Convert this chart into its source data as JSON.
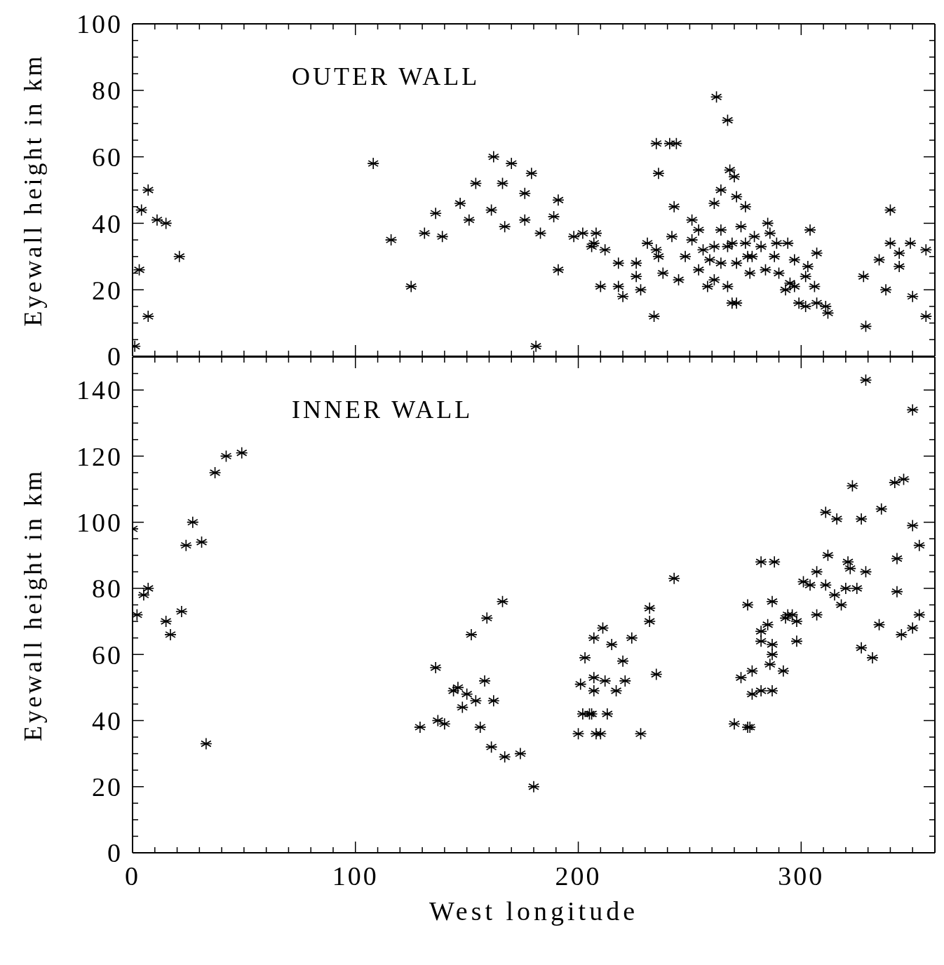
{
  "chart_data": [
    {
      "type": "scatter",
      "ylabel": "Eyewall height in km",
      "annotations": [
        "OUTER WALL"
      ],
      "tick_labels": "y",
      "marker": "cross",
      "color": "#000000",
      "xlim": [
        0,
        360
      ],
      "xticks": [
        0,
        {
          "value": 10,
          "label": null
        },
        {
          "value": 20,
          "label": null
        },
        {
          "value": 30,
          "label": null
        },
        {
          "value": 40,
          "label": null
        },
        {
          "value": 50,
          "label": null
        },
        {
          "value": 60,
          "label": null
        },
        {
          "value": 70,
          "label": null
        },
        {
          "value": 80,
          "label": null
        },
        {
          "value": 90,
          "label": null
        },
        100,
        {
          "value": 110,
          "label": null
        },
        {
          "value": 120,
          "label": null
        },
        {
          "value": 130,
          "label": null
        },
        {
          "value": 140,
          "label": null
        },
        {
          "value": 150,
          "label": null
        },
        {
          "value": 160,
          "label": null
        },
        {
          "value": 170,
          "label": null
        },
        {
          "value": 180,
          "label": null
        },
        {
          "value": 190,
          "label": null
        },
        200,
        {
          "value": 210,
          "label": null
        },
        {
          "value": 220,
          "label": null
        },
        {
          "value": 230,
          "label": null
        },
        {
          "value": 240,
          "label": null
        },
        {
          "value": 250,
          "label": null
        },
        {
          "value": 260,
          "label": null
        },
        {
          "value": 270,
          "label": null
        },
        {
          "value": 280,
          "label": null
        },
        {
          "value": 290,
          "label": null
        },
        300,
        {
          "value": 310,
          "label": null
        },
        {
          "value": 320,
          "label": null
        },
        {
          "value": 330,
          "label": null
        },
        {
          "value": 340,
          "label": null
        },
        {
          "value": 350,
          "label": null
        },
        {
          "value": 360,
          "label": null
        }
      ],
      "ylim": [
        0,
        100
      ],
      "yticks": [
        0,
        {
          "value": 5,
          "label": null
        },
        {
          "value": 10,
          "label": null
        },
        {
          "value": 15,
          "label": null
        },
        20,
        {
          "value": 25,
          "label": null
        },
        {
          "value": 30,
          "label": null
        },
        {
          "value": 35,
          "label": null
        },
        40,
        {
          "value": 45,
          "label": null
        },
        {
          "value": 50,
          "label": null
        },
        {
          "value": 55,
          "label": null
        },
        60,
        {
          "value": 65,
          "label": null
        },
        {
          "value": 70,
          "label": null
        },
        {
          "value": 75,
          "label": null
        },
        80,
        {
          "value": 85,
          "label": null
        },
        {
          "value": 90,
          "label": null
        },
        {
          "value": 95,
          "label": null
        },
        100
      ],
      "x": [
        1,
        3,
        4,
        7,
        7,
        11,
        15,
        21,
        108,
        116,
        125,
        131,
        136,
        139,
        147,
        151,
        154,
        162,
        161,
        166,
        167,
        170,
        176,
        176,
        179,
        181,
        183,
        189,
        191,
        191,
        198,
        202,
        208,
        207,
        206,
        210,
        212,
        218,
        218,
        220,
        226,
        226,
        228,
        231,
        235,
        236,
        238,
        234,
        235,
        236,
        241,
        244,
        243,
        242,
        245,
        248,
        251,
        251,
        254,
        254,
        258,
        261,
        256,
        259,
        261,
        262,
        267,
        264,
        261,
        268,
        270,
        271,
        275,
        264,
        264,
        267,
        269,
        267,
        269,
        271,
        271,
        273,
        275,
        276,
        278,
        277,
        279,
        282,
        285,
        286,
        284,
        288,
        289,
        290,
        294,
        295,
        293,
        297,
        297,
        299,
        302,
        302,
        303,
        304,
        307,
        307,
        306,
        312,
        311,
        328,
        329,
        335,
        338,
        340,
        340,
        344,
        344,
        349,
        350,
        356,
        356
      ],
      "values": [
        3,
        26,
        44,
        50,
        12,
        41,
        40,
        30,
        58,
        35,
        21,
        37,
        43,
        36,
        46,
        41,
        52,
        60,
        44,
        52,
        39,
        58,
        49,
        41,
        55,
        3,
        37,
        42,
        47,
        26,
        36,
        37,
        37,
        34,
        33,
        21,
        32,
        28,
        21,
        18,
        28,
        24,
        20,
        34,
        32,
        30,
        25,
        12,
        64,
        55,
        64,
        64,
        45,
        36,
        23,
        30,
        35,
        41,
        38,
        26,
        21,
        23,
        32,
        29,
        33,
        78,
        71,
        50,
        46,
        56,
        54,
        48,
        45,
        38,
        28,
        33,
        34,
        21,
        16,
        16,
        28,
        39,
        34,
        30,
        30,
        25,
        36,
        33,
        40,
        37,
        26,
        30,
        34,
        25,
        34,
        22,
        20,
        21,
        29,
        16,
        15,
        24,
        27,
        38,
        16,
        31,
        21,
        13,
        15,
        24,
        9,
        29,
        20,
        44,
        34,
        31,
        27,
        34,
        18,
        32,
        12
      ]
    },
    {
      "type": "scatter",
      "xlabel": "West longitude",
      "ylabel": "Eyewall height in km",
      "annotations": [
        "INNER WALL"
      ],
      "marker": "cross",
      "color": "#000000",
      "xlim": [
        0,
        360
      ],
      "xticks": [
        0,
        {
          "value": 10,
          "label": null
        },
        {
          "value": 20,
          "label": null
        },
        {
          "value": 30,
          "label": null
        },
        {
          "value": 40,
          "label": null
        },
        {
          "value": 50,
          "label": null
        },
        {
          "value": 60,
          "label": null
        },
        {
          "value": 70,
          "label": null
        },
        {
          "value": 80,
          "label": null
        },
        {
          "value": 90,
          "label": null
        },
        100,
        {
          "value": 110,
          "label": null
        },
        {
          "value": 120,
          "label": null
        },
        {
          "value": 130,
          "label": null
        },
        {
          "value": 140,
          "label": null
        },
        {
          "value": 150,
          "label": null
        },
        {
          "value": 160,
          "label": null
        },
        {
          "value": 170,
          "label": null
        },
        {
          "value": 180,
          "label": null
        },
        {
          "value": 190,
          "label": null
        },
        200,
        {
          "value": 210,
          "label": null
        },
        {
          "value": 220,
          "label": null
        },
        {
          "value": 230,
          "label": null
        },
        {
          "value": 240,
          "label": null
        },
        {
          "value": 250,
          "label": null
        },
        {
          "value": 260,
          "label": null
        },
        {
          "value": 270,
          "label": null
        },
        {
          "value": 280,
          "label": null
        },
        {
          "value": 290,
          "label": null
        },
        300,
        {
          "value": 310,
          "label": null
        },
        {
          "value": 320,
          "label": null
        },
        {
          "value": 330,
          "label": null
        },
        {
          "value": 340,
          "label": null
        },
        {
          "value": 350,
          "label": null
        },
        {
          "value": 360,
          "label": null
        }
      ],
      "ylim": [
        0,
        150
      ],
      "yticks": [
        0,
        {
          "value": 5,
          "label": null
        },
        {
          "value": 10,
          "label": null
        },
        {
          "value": 15,
          "label": null
        },
        20,
        {
          "value": 25,
          "label": null
        },
        {
          "value": 30,
          "label": null
        },
        {
          "value": 35,
          "label": null
        },
        40,
        {
          "value": 45,
          "label": null
        },
        {
          "value": 50,
          "label": null
        },
        {
          "value": 55,
          "label": null
        },
        60,
        {
          "value": 65,
          "label": null
        },
        {
          "value": 70,
          "label": null
        },
        {
          "value": 75,
          "label": null
        },
        80,
        {
          "value": 85,
          "label": null
        },
        {
          "value": 90,
          "label": null
        },
        {
          "value": 95,
          "label": null
        },
        100,
        {
          "value": 105,
          "label": null
        },
        {
          "value": 110,
          "label": null
        },
        {
          "value": 115,
          "label": null
        },
        120,
        {
          "value": 125,
          "label": null
        },
        {
          "value": 130,
          "label": null
        },
        {
          "value": 135,
          "label": null
        },
        140,
        {
          "value": 145,
          "label": null
        },
        {
          "value": 150,
          "label": null
        }
      ],
      "x": [
        0,
        2,
        5,
        7,
        15,
        17,
        22,
        24,
        27,
        31,
        33,
        37,
        42,
        49,
        129,
        136,
        137,
        140,
        144,
        146,
        150,
        148,
        154,
        158,
        156,
        152,
        159,
        162,
        161,
        166,
        167,
        174,
        180,
        200,
        201,
        202,
        203,
        205,
        207,
        207,
        206,
        207,
        211,
        208,
        210,
        212,
        213,
        215,
        217,
        220,
        221,
        224,
        228,
        232,
        232,
        235,
        243,
        270,
        276,
        277,
        273,
        278,
        278,
        282,
        287,
        276,
        282,
        288,
        287,
        282,
        285,
        282,
        287,
        287,
        286,
        292,
        294,
        296,
        298,
        293,
        298,
        301,
        304,
        307,
        307,
        311,
        316,
        312,
        311,
        315,
        318,
        320,
        321,
        322,
        323,
        325,
        327,
        329,
        329,
        327,
        332,
        335,
        336,
        342,
        346,
        343,
        343,
        345,
        350,
        350,
        350,
        353,
        353
      ],
      "values": [
        98,
        72,
        78,
        80,
        70,
        66,
        73,
        93,
        100,
        94,
        33,
        115,
        120,
        121,
        38,
        56,
        40,
        39,
        49,
        50,
        48,
        44,
        46,
        52,
        38,
        66,
        71,
        46,
        32,
        76,
        29,
        30,
        20,
        36,
        51,
        42,
        59,
        42,
        53,
        49,
        42,
        65,
        68,
        36,
        36,
        52,
        42,
        63,
        49,
        58,
        52,
        65,
        36,
        74,
        70,
        54,
        83,
        39,
        38,
        38,
        53,
        55,
        48,
        49,
        49,
        75,
        88,
        88,
        76,
        67,
        69,
        64,
        63,
        60,
        57,
        55,
        72,
        72,
        70,
        71,
        64,
        82,
        81,
        85,
        72,
        103,
        101,
        90,
        81,
        78,
        75,
        80,
        88,
        86,
        111,
        80,
        101,
        85,
        143,
        62,
        59,
        69,
        104,
        112,
        113,
        89,
        79,
        66,
        68,
        134,
        99,
        93,
        72
      ]
    }
  ]
}
